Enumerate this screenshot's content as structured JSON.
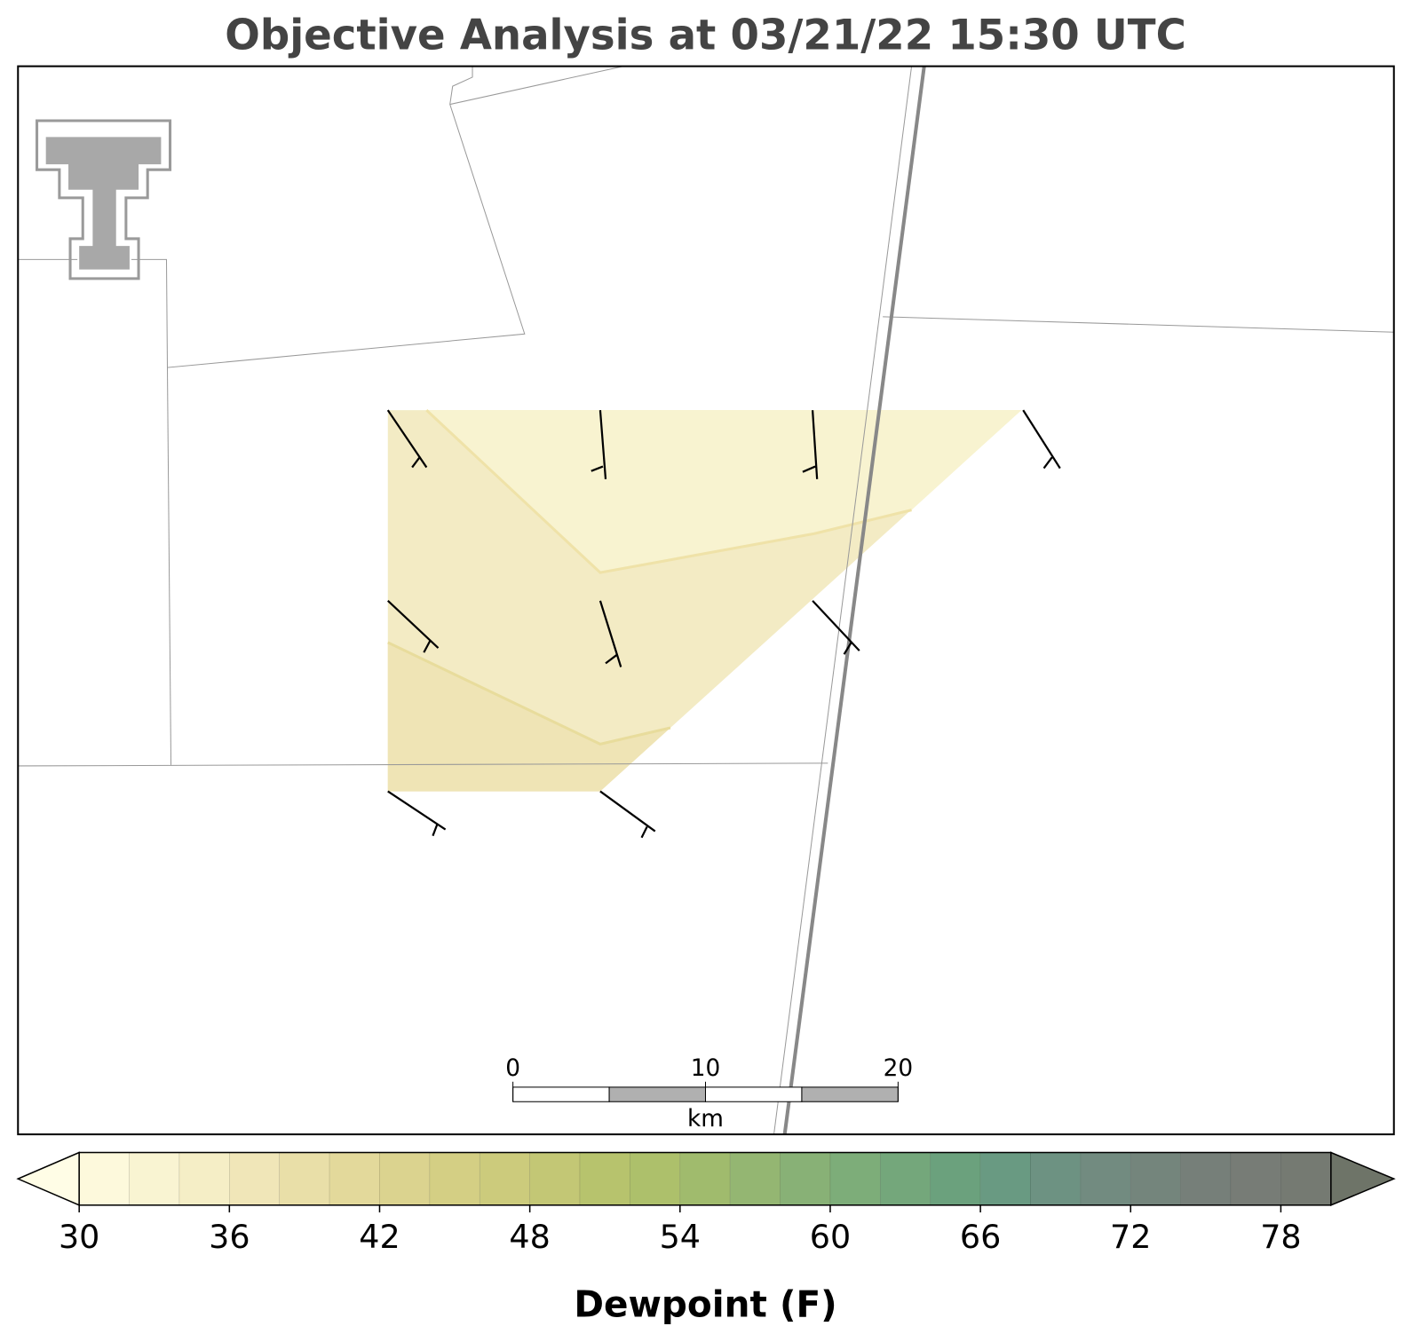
{
  "title": "Objective Analysis at 03/21/22 15:30 UTC",
  "colorbar": {
    "label": "Dewpoint (F)",
    "ticks": [
      30,
      36,
      42,
      48,
      54,
      60,
      66,
      72,
      78
    ],
    "levels": [
      30,
      32,
      34,
      36,
      38,
      40,
      42,
      44,
      46,
      48,
      50,
      52,
      54,
      56,
      58,
      60,
      62,
      64,
      66,
      68,
      70,
      72,
      74,
      76,
      78,
      80
    ],
    "colors": [
      "#fdf9dc",
      "#f9f4d2",
      "#f5eec6",
      "#f0e6b8",
      "#e9dfa8",
      "#e3d99b",
      "#dbd38f",
      "#d4cf84",
      "#cccb7c",
      "#c3c775",
      "#b7c36d",
      "#adc06b",
      "#a0bb6d",
      "#94b672",
      "#88b176",
      "#7dad79",
      "#74a77b",
      "#6ba17d",
      "#699a82",
      "#6d9282",
      "#728b80",
      "#74857c",
      "#767f79",
      "#777c76",
      "#757a72"
    ],
    "under_color": "#fffde6",
    "over_color": "#6e7468"
  },
  "scale_bar": {
    "ticks": [
      0,
      10,
      20
    ],
    "unit": "km"
  }
}
